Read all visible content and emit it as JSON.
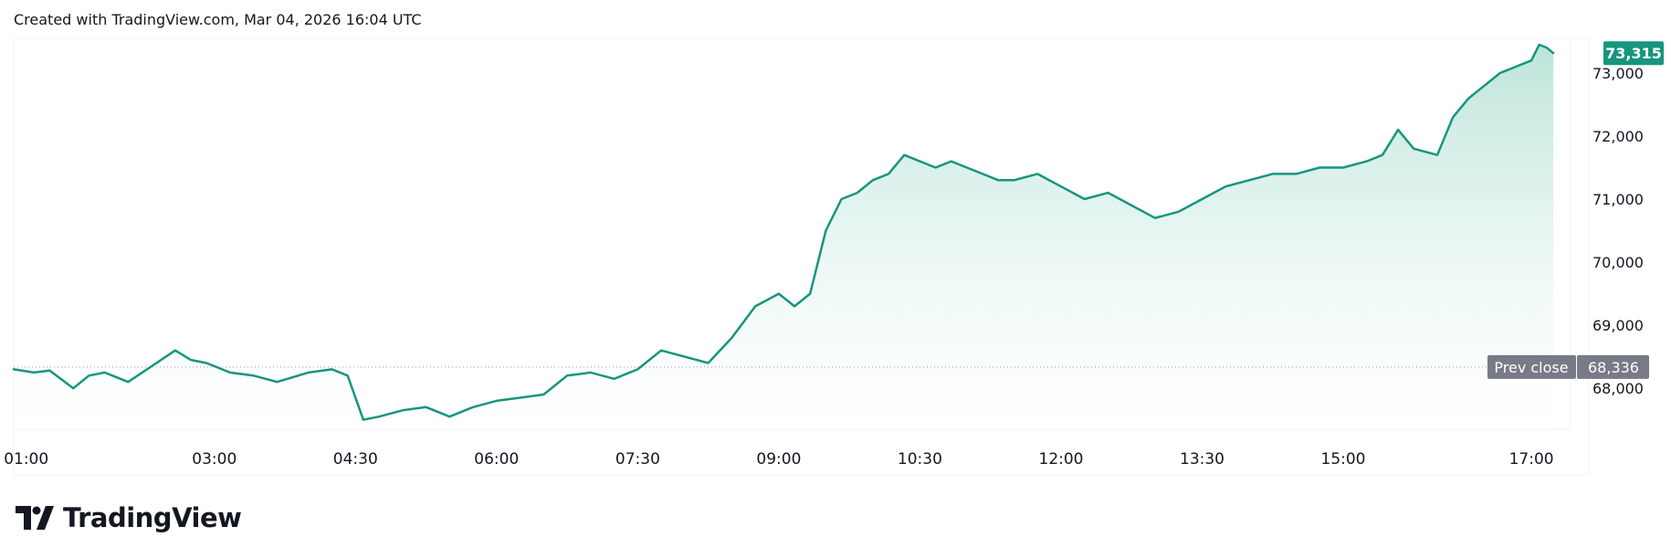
{
  "header": {
    "caption": "Created with TradingView.com, Mar 04, 2026 16:04 UTC"
  },
  "footer": {
    "brand": "TradingView"
  },
  "colors": {
    "line": "#16967c",
    "area_top": "#a6dccd",
    "area_bottom": "#ffffff",
    "last_badge": "#16967c",
    "prev_badge": "#787b86",
    "gridline": "#f0f3fa",
    "prev_line": "#9598a1"
  },
  "chart_data": {
    "type": "area",
    "title": "",
    "xlabel": "",
    "ylabel": "",
    "x_ticks": [
      "01:00",
      "03:00",
      "04:30",
      "06:00",
      "07:30",
      "09:00",
      "10:30",
      "12:00",
      "13:30",
      "15:00",
      "17:00"
    ],
    "y_ticks": [
      "68,000",
      "69,000",
      "70,000",
      "71,000",
      "72,000",
      "73,000"
    ],
    "y_tick_values": [
      68000,
      69000,
      70000,
      71000,
      72000,
      73000
    ],
    "ylim": [
      67350,
      73550
    ],
    "xlim": [
      "00:52",
      "17:25"
    ],
    "last_price": {
      "value": 73315,
      "label": "73,315"
    },
    "prev_close": {
      "label": "Prev close",
      "value": 68336,
      "value_label": "68,336"
    },
    "grid": false,
    "series": [
      {
        "x": [
          "00:52",
          "01:05",
          "01:15",
          "01:30",
          "01:40",
          "01:50",
          "02:05",
          "02:20",
          "02:35",
          "02:45",
          "02:55",
          "03:10",
          "03:25",
          "03:40",
          "04:00",
          "04:15",
          "04:25",
          "04:35",
          "04:45",
          "05:00",
          "05:15",
          "05:30",
          "05:45",
          "06:00",
          "06:15",
          "06:30",
          "06:45",
          "07:00",
          "07:15",
          "07:30",
          "07:45",
          "08:00",
          "08:15",
          "08:30",
          "08:45",
          "09:00",
          "09:10",
          "09:20",
          "09:30",
          "09:40",
          "09:50",
          "10:00",
          "10:10",
          "10:20",
          "10:30",
          "10:40",
          "10:50",
          "11:00",
          "11:10",
          "11:20",
          "11:30",
          "11:45",
          "12:00",
          "12:15",
          "12:30",
          "12:45",
          "13:00",
          "13:15",
          "13:30",
          "13:45",
          "14:00",
          "14:15",
          "14:30",
          "14:45",
          "15:00",
          "15:15",
          "15:25",
          "15:35",
          "15:45",
          "16:00",
          "16:10",
          "16:20",
          "16:30",
          "16:40",
          "16:50",
          "17:00",
          "17:05",
          "17:10",
          "17:14"
        ],
        "y": [
          68300,
          68250,
          68280,
          68000,
          68200,
          68250,
          68100,
          68350,
          68600,
          68450,
          68400,
          68250,
          68200,
          68100,
          68250,
          68300,
          68200,
          67500,
          67550,
          67650,
          67700,
          67550,
          67700,
          67800,
          67850,
          67900,
          68200,
          68250,
          68150,
          68300,
          68600,
          68500,
          68400,
          68800,
          69300,
          69500,
          69300,
          69500,
          70500,
          71000,
          71100,
          71300,
          71400,
          71700,
          71600,
          71500,
          71600,
          71500,
          71400,
          71300,
          71300,
          71400,
          71200,
          71000,
          71100,
          70900,
          70700,
          70800,
          71000,
          71200,
          71300,
          71400,
          71400,
          71500,
          71500,
          71600,
          71700,
          72100,
          71800,
          71700,
          72300,
          72600,
          72800,
          73000,
          73100,
          73200,
          73450,
          73400,
          73315
        ]
      }
    ]
  }
}
